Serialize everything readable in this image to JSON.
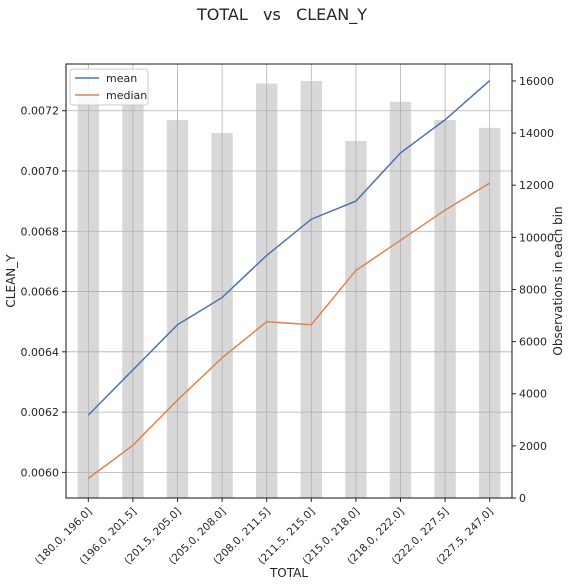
{
  "chart_data": {
    "type": "line",
    "title": "TOTAL   vs   CLEAN_Y",
    "xlabel": "TOTAL",
    "ylabel": "CLEAN_Y",
    "y2label": "Observations in each bin",
    "categories": [
      "(180.0, 196.0]",
      "(196.0, 201.5]",
      "(201.5, 205.0]",
      "(205.0, 208.0]",
      "(208.0, 211.5]",
      "(211.5, 215.0]",
      "(215.0, 218.0]",
      "(218.0, 222.0]",
      "(222.0, 227.5]",
      "(227.5, 247.0]"
    ],
    "series": [
      {
        "name": "mean",
        "color": "#4c72b0",
        "values": [
          0.00619,
          0.00634,
          0.00649,
          0.00658,
          0.00672,
          0.00684,
          0.0069,
          0.00706,
          0.00717,
          0.0073
        ]
      },
      {
        "name": "median",
        "color": "#dd8452",
        "values": [
          0.00598,
          0.00609,
          0.00624,
          0.00638,
          0.0065,
          0.00649,
          0.00667,
          0.00677,
          0.00687,
          0.00696
        ]
      }
    ],
    "bars": {
      "color": "#d8d8d8",
      "values": [
        15500,
        15700,
        14500,
        14000,
        15900,
        16000,
        13700,
        15200,
        14500,
        14200
      ]
    },
    "yticks": [
      "0.0060",
      "0.0062",
      "0.0064",
      "0.0066",
      "0.0068",
      "0.0070",
      "0.0072"
    ],
    "ytick_values": [
      0.006,
      0.0062,
      0.0064,
      0.0066,
      0.0068,
      0.007,
      0.0072
    ],
    "ylim": [
      0.005915,
      0.007355
    ],
    "y2ticks": [
      "0",
      "2000",
      "4000",
      "6000",
      "8000",
      "10000",
      "12000",
      "14000",
      "16000"
    ],
    "y2tick_values": [
      0,
      2000,
      4000,
      6000,
      8000,
      10000,
      12000,
      14000,
      16000
    ],
    "y2lim": [
      0,
      16650
    ],
    "grid": true,
    "legend_position": "top-left"
  }
}
